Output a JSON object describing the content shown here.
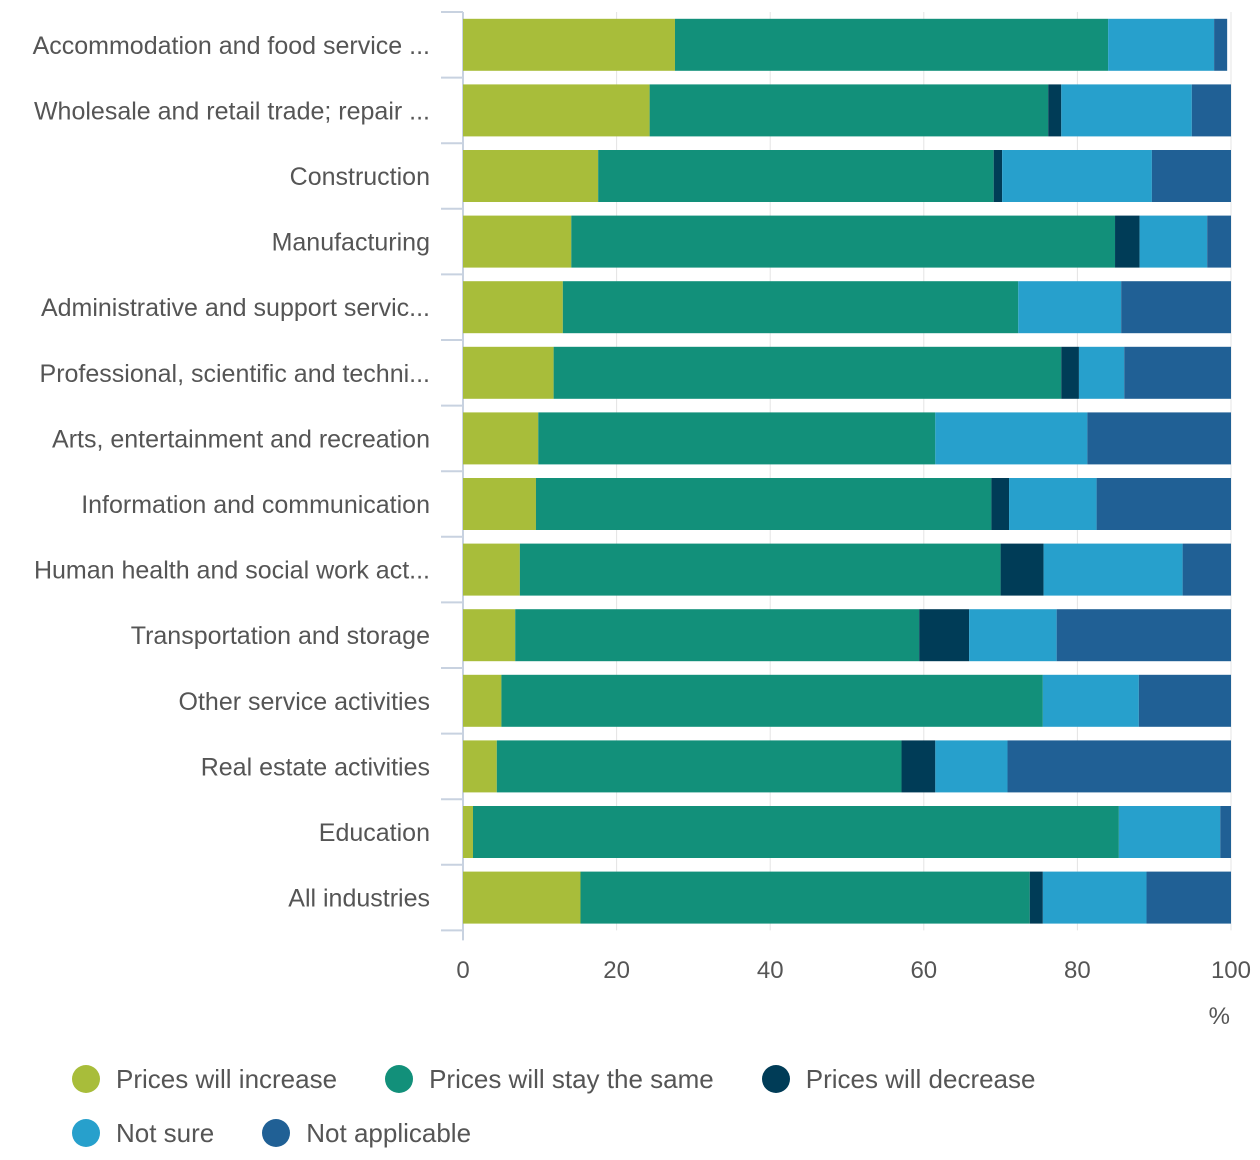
{
  "chart_data": {
    "type": "bar",
    "orientation": "horizontal",
    "stacked": true,
    "categories": [
      "Accommodation and food service ...",
      "Wholesale and retail trade; repair ...",
      "Construction",
      "Manufacturing",
      "Administrative and support servic...",
      "Professional, scientific and techni...",
      "Arts, entertainment and recreation",
      "Information and communication",
      "Human health and social work act...",
      "Transportation and storage",
      "Other service activities",
      "Real estate activities",
      "Education",
      "All industries"
    ],
    "series": [
      {
        "name": "Prices will increase",
        "color": "#a8bd3a",
        "values": [
          27.6,
          24.3,
          17.6,
          14.1,
          13.0,
          11.8,
          9.8,
          9.5,
          7.4,
          6.8,
          5.0,
          4.4,
          1.3,
          15.3
        ]
      },
      {
        "name": "Prices will stay the same",
        "color": "#12907a",
        "values": [
          56.4,
          51.9,
          51.5,
          70.8,
          59.3,
          66.1,
          51.7,
          59.3,
          62.6,
          52.6,
          70.5,
          52.7,
          84.1,
          58.5
        ]
      },
      {
        "name": "Prices will decrease",
        "color": "#003c57",
        "values": [
          0.0,
          1.7,
          1.1,
          3.2,
          0.0,
          2.3,
          0.0,
          2.3,
          5.6,
          6.5,
          0.0,
          4.4,
          0.0,
          1.7
        ]
      },
      {
        "name": "Not sure",
        "color": "#27a0cc",
        "values": [
          13.8,
          17.0,
          19.5,
          8.8,
          13.4,
          5.9,
          19.8,
          11.4,
          18.1,
          11.4,
          12.5,
          9.4,
          13.2,
          13.5
        ]
      },
      {
        "name": "Not applicable",
        "color": "#206095",
        "values": [
          1.7,
          5.1,
          10.3,
          3.1,
          14.3,
          13.9,
          18.7,
          17.5,
          6.3,
          22.7,
          12.0,
          29.1,
          1.4,
          11.0
        ]
      }
    ],
    "xlim": [
      0,
      100
    ],
    "xticks": [
      "0",
      "20",
      "40",
      "60",
      "80",
      "100"
    ],
    "xunit": "%",
    "grid": true,
    "legend_position": "bottom"
  }
}
